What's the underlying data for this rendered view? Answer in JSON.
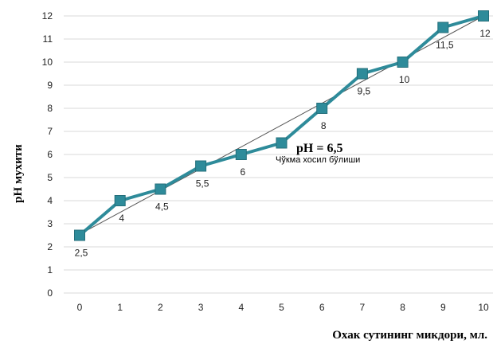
{
  "chart_data": {
    "type": "line",
    "x": [
      0,
      1,
      2,
      3,
      4,
      5,
      6,
      7,
      8,
      9,
      10
    ],
    "series": [
      {
        "values": [
          2.5,
          4,
          4.5,
          5.5,
          6,
          6.5,
          8,
          9.5,
          10,
          11.5,
          12
        ],
        "color": "#2e8b9a"
      }
    ],
    "data_labels": [
      "2,5",
      "4",
      "4,5",
      "5,5",
      "6",
      "",
      "8",
      "9,5",
      "10",
      "11,5",
      "12"
    ],
    "trendline": {
      "type": "linear",
      "color": "#555555"
    },
    "xlim": [
      0,
      10
    ],
    "ylim": [
      0,
      12
    ],
    "x_ticks": [
      "0",
      "1",
      "2",
      "3",
      "4",
      "5",
      "6",
      "7",
      "8",
      "9",
      "10"
    ],
    "y_ticks": [
      "0",
      "1",
      "2",
      "3",
      "4",
      "5",
      "6",
      "7",
      "8",
      "9",
      "10",
      "11",
      "12"
    ],
    "xlabel": "Охак сутининг микдори, мл.",
    "ylabel": "рН мухити",
    "grid": "horizontal",
    "annotation": {
      "main": "pH = 6,5",
      "sub": "Чўкма хосил бўлиши"
    }
  }
}
